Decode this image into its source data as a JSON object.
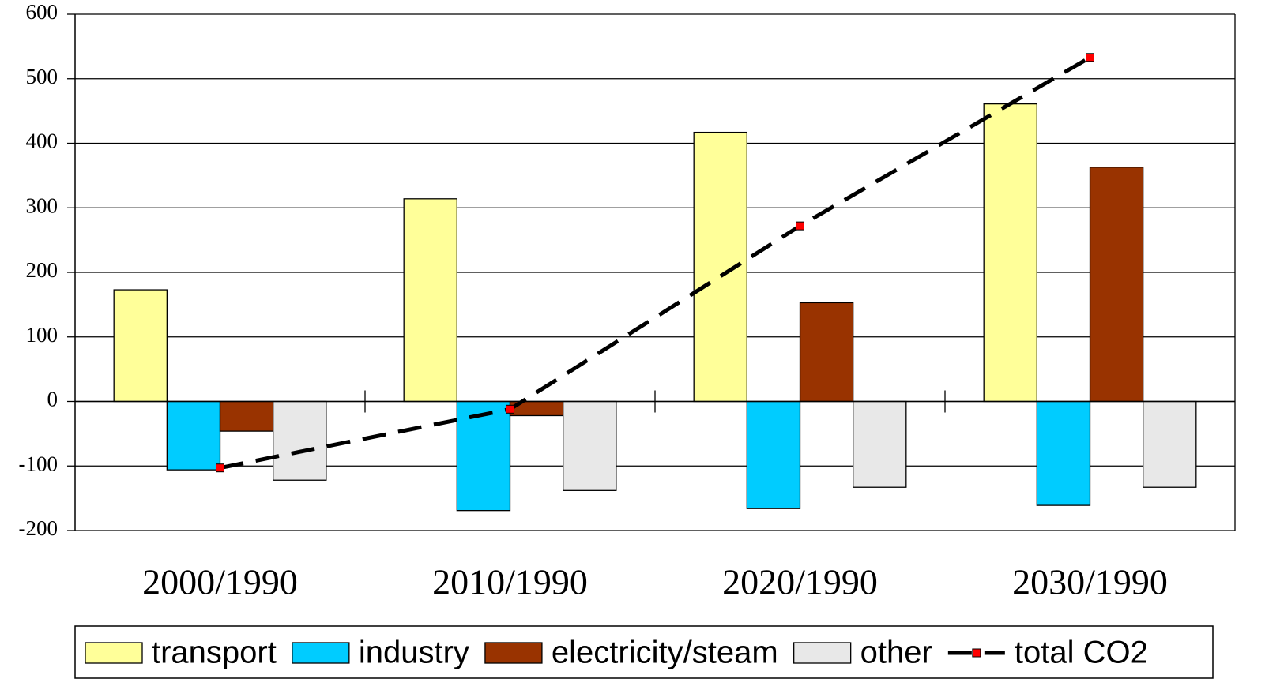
{
  "chart_data": {
    "type": "bar",
    "categories": [
      "2000/1990",
      "2010/1990",
      "2020/1990",
      "2030/1990"
    ],
    "series": [
      {
        "name": "transport",
        "color": "#ffff99",
        "values": [
          173,
          314,
          417,
          461
        ]
      },
      {
        "name": "industry",
        "color": "#00ccff",
        "values": [
          -106,
          -169,
          -166,
          -161
        ]
      },
      {
        "name": "electricity/steam",
        "color": "#993300",
        "values": [
          -46,
          -22,
          153,
          363
        ]
      },
      {
        "name": "other",
        "color": "#e8e8e8",
        "values": [
          -122,
          -138,
          -133,
          -133
        ]
      },
      {
        "name": "total CO2",
        "type": "line",
        "color": "#000000",
        "marker_color": "#ff0000",
        "values": [
          -103,
          -12,
          272,
          533
        ]
      }
    ],
    "ylim": [
      -200,
      600
    ],
    "yticks": [
      -200,
      -100,
      0,
      100,
      200,
      300,
      400,
      500,
      600
    ],
    "grid": true,
    "legend": "bottom"
  }
}
